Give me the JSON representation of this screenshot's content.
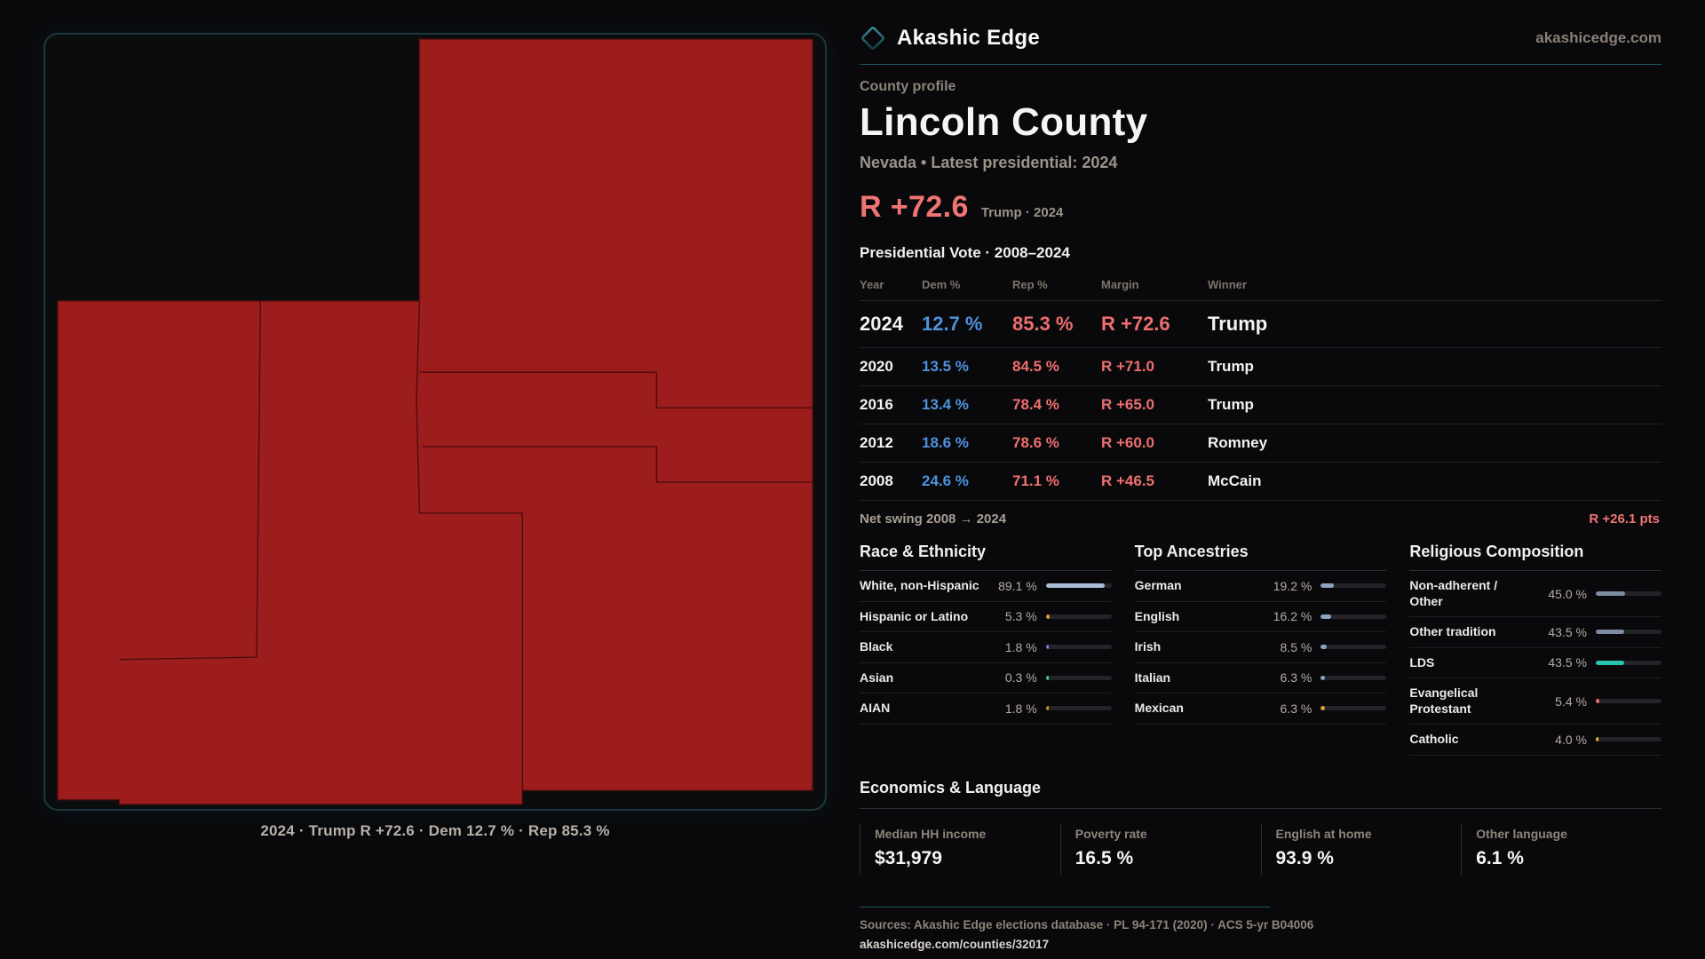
{
  "brand": {
    "name": "Akashic Edge",
    "domain": "akashicedge.com"
  },
  "header": {
    "kicker": "County profile",
    "title": "Lincoln County",
    "subtitle": "Nevada • Latest presidential: 2024"
  },
  "headline": {
    "margin": "R +72.6",
    "note": "Trump · 2024"
  },
  "map": {
    "caption": "2024 · Trump R +72.6 · Dem 12.7 % · Rep 85.3 %",
    "fill_color": "#9d1c1c"
  },
  "vote_table": {
    "title": "Presidential Vote · 2008–2024",
    "columns": [
      "Year",
      "Dem %",
      "Rep %",
      "Margin",
      "Winner"
    ],
    "rows": [
      {
        "year": "2024",
        "dem": "12.7 %",
        "rep": "85.3 %",
        "margin": "R +72.6",
        "winner": "Trump",
        "latest": true
      },
      {
        "year": "2020",
        "dem": "13.5 %",
        "rep": "84.5 %",
        "margin": "R +71.0",
        "winner": "Trump",
        "latest": false
      },
      {
        "year": "2016",
        "dem": "13.4 %",
        "rep": "78.4 %",
        "margin": "R +65.0",
        "winner": "Trump",
        "latest": false
      },
      {
        "year": "2012",
        "dem": "18.6 %",
        "rep": "78.6 %",
        "margin": "R +60.0",
        "winner": "Romney",
        "latest": false
      },
      {
        "year": "2008",
        "dem": "24.6 %",
        "rep": "71.1 %",
        "margin": "R +46.5",
        "winner": "McCain",
        "latest": false
      }
    ],
    "net_swing_label": "Net swing 2008 → 2024",
    "net_swing_value": "R +26.1 pts"
  },
  "demographics": [
    {
      "title": "Race & Ethnicity",
      "rows": [
        {
          "label": "White, non-Hispanic",
          "value": "89.1 %",
          "pct": 89.1,
          "color": "#a8bdd8"
        },
        {
          "label": "Hispanic or Latino",
          "value": "5.3 %",
          "pct": 5.3,
          "color": "#e09a33"
        },
        {
          "label": "Black",
          "value": "1.8 %",
          "pct": 1.8,
          "color": "#8577e8"
        },
        {
          "label": "Asian",
          "value": "0.3 %",
          "pct": 0.3,
          "color": "#3ecf8e"
        },
        {
          "label": "AIAN",
          "value": "1.8 %",
          "pct": 1.8,
          "color": "#cf8a1f"
        }
      ]
    },
    {
      "title": "Top Ancestries",
      "rows": [
        {
          "label": "German",
          "value": "19.2 %",
          "pct": 19.2,
          "color": "#8ba3c2"
        },
        {
          "label": "English",
          "value": "16.2 %",
          "pct": 16.2,
          "color": "#8ba3c2"
        },
        {
          "label": "Irish",
          "value": "8.5 %",
          "pct": 8.5,
          "color": "#8ba3c2"
        },
        {
          "label": "Italian",
          "value": "6.3 %",
          "pct": 6.3,
          "color": "#8ba3c2"
        },
        {
          "label": "Mexican",
          "value": "6.3 %",
          "pct": 6.3,
          "color": "#e0a030"
        }
      ]
    },
    {
      "title": "Religious Composition",
      "rows": [
        {
          "label": "Non-adherent / Other",
          "value": "45.0 %",
          "pct": 45.0,
          "color": "#7e8ba0"
        },
        {
          "label": "Other tradition",
          "value": "43.5 %",
          "pct": 43.5,
          "color": "#7e8ba0"
        },
        {
          "label": "LDS",
          "value": "43.5 %",
          "pct": 43.5,
          "color": "#2bc4b0"
        },
        {
          "label": "Evangelical Protestant",
          "value": "5.4 %",
          "pct": 5.4,
          "color": "#e66a6a"
        },
        {
          "label": "Catholic",
          "value": "4.0 %",
          "pct": 4.0,
          "color": "#e8b820"
        }
      ]
    }
  ],
  "economics": {
    "title": "Economics & Language",
    "stats": [
      {
        "label": "Median HH income",
        "value": "$31,979"
      },
      {
        "label": "Poverty rate",
        "value": "16.5 %"
      },
      {
        "label": "English at home",
        "value": "93.9 %"
      },
      {
        "label": "Other language",
        "value": "6.1 %"
      }
    ]
  },
  "footer": {
    "sources": "Sources: Akashic Edge elections database · PL 94-171 (2020) · ACS 5-yr B04006",
    "url": "akashicedge.com/counties/32017"
  },
  "colors": {
    "dem": "#4e92dd",
    "rep": "#ee6f6f",
    "accent_teal": "#1c565e",
    "map_red": "#9d1c1c"
  }
}
